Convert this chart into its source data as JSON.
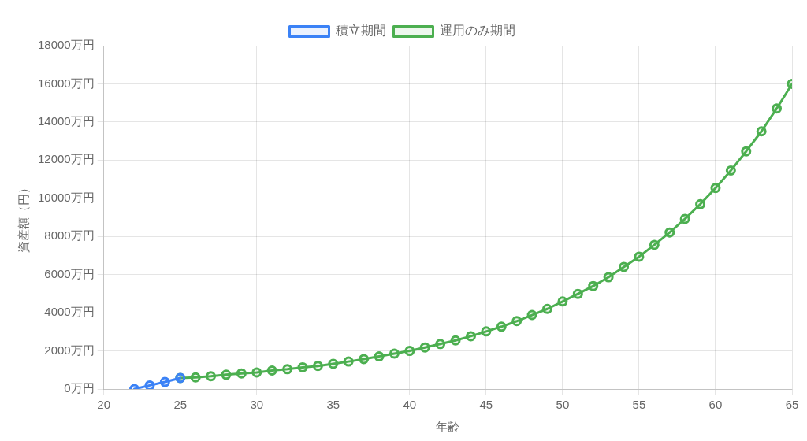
{
  "chart_data": {
    "type": "line",
    "xlabel": "年齢",
    "ylabel": "資産額（円）",
    "xlim": [
      20,
      65
    ],
    "xticks": [
      20,
      25,
      30,
      35,
      40,
      45,
      50,
      55,
      60,
      65
    ],
    "ylim": [
      0,
      18000
    ],
    "yticks": [
      {
        "value": 0,
        "label": "0万円"
      },
      {
        "value": 2000,
        "label": "2000万円"
      },
      {
        "value": 4000,
        "label": "4000万円"
      },
      {
        "value": 6000,
        "label": "6000万円"
      },
      {
        "value": 8000,
        "label": "8000万円"
      },
      {
        "value": 10000,
        "label": "10000万円"
      },
      {
        "value": 12000,
        "label": "12000万円"
      },
      {
        "value": 14000,
        "label": "14000万円"
      },
      {
        "value": 16000,
        "label": "16000万円"
      },
      {
        "value": 18000,
        "label": "18000万円"
      }
    ],
    "grid": true,
    "legend": "top",
    "marker": "circle",
    "line_style": "solid",
    "series": [
      {
        "name": "積立期間",
        "color": "#3b82f6",
        "x": [
          22,
          23,
          24,
          25
        ],
        "values": [
          0,
          190,
          370,
          580
        ]
      },
      {
        "name": "運用のみ期間",
        "color": "#4caf50",
        "x": [
          25,
          26,
          27,
          28,
          29,
          30,
          31,
          32,
          33,
          34,
          35,
          36,
          37,
          38,
          39,
          40,
          41,
          42,
          43,
          44,
          45,
          46,
          47,
          48,
          49,
          50,
          51,
          52,
          53,
          54,
          55,
          56,
          57,
          58,
          59,
          60,
          61,
          62,
          63,
          64,
          65
        ],
        "values": [
          580,
          610,
          670,
          750,
          820,
          870,
          970,
          1040,
          1140,
          1210,
          1320,
          1440,
          1570,
          1710,
          1860,
          2000,
          2180,
          2360,
          2550,
          2770,
          3020,
          3270,
          3560,
          3880,
          4200,
          4590,
          4990,
          5400,
          5860,
          6400,
          6940,
          7560,
          8210,
          8920,
          9690,
          10540,
          11460,
          12460,
          13510,
          14710,
          16000
        ]
      }
    ]
  }
}
